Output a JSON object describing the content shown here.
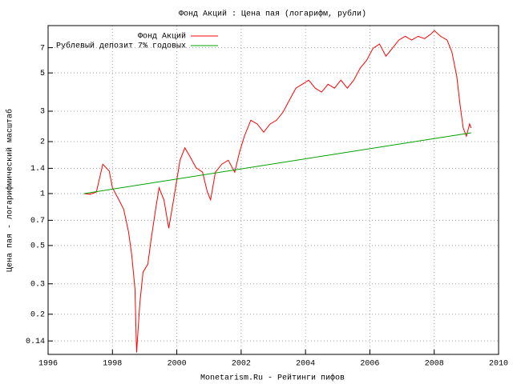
{
  "chart_data": {
    "type": "line",
    "title": "Фонд Акций : Цена пая (логарифм, рубли)",
    "x_label": "Monetarism.Ru - Рейтинги пифов",
    "y_label": "Цена пая - логарифмический масштаб",
    "log_y": true,
    "grid": true,
    "legend": "top-left",
    "xlim": [
      1996,
      2010
    ],
    "xticks": [
      1996,
      1998,
      2000,
      2002,
      2004,
      2006,
      2008,
      2010
    ],
    "ylim": [
      0.117,
      9.4
    ],
    "yticks": [
      0.14,
      0.2,
      0.3,
      0.5,
      0.7,
      1,
      1.4,
      2,
      3,
      5,
      7
    ],
    "series": [
      {
        "name": "Фонд Акций",
        "color": "#ff0000",
        "x": [
          1997.12,
          1997.3,
          1997.5,
          1997.7,
          1997.9,
          1998.0,
          1998.2,
          1998.35,
          1998.5,
          1998.6,
          1998.7,
          1998.75,
          1998.85,
          1998.95,
          1999.1,
          1999.2,
          1999.35,
          1999.45,
          1999.6,
          1999.75,
          1999.9,
          2000.0,
          2000.1,
          2000.25,
          2000.4,
          2000.6,
          2000.8,
          2000.95,
          2001.05,
          2001.2,
          2001.4,
          2001.6,
          2001.8,
          2001.95,
          2002.1,
          2002.3,
          2002.5,
          2002.7,
          2002.9,
          2003.1,
          2003.3,
          2003.5,
          2003.7,
          2003.9,
          2004.1,
          2004.3,
          2004.5,
          2004.7,
          2004.9,
          2005.1,
          2005.3,
          2005.5,
          2005.7,
          2005.9,
          2006.1,
          2006.3,
          2006.5,
          2006.7,
          2006.9,
          2007.1,
          2007.3,
          2007.5,
          2007.7,
          2007.9,
          2008.0,
          2008.2,
          2008.4,
          2008.55,
          2008.7,
          2008.8,
          2008.9,
          2009.0,
          2009.1,
          2009.15
        ],
        "values": [
          1.0,
          0.99,
          1.02,
          1.48,
          1.35,
          1.08,
          0.92,
          0.81,
          0.6,
          0.44,
          0.28,
          0.12,
          0.23,
          0.35,
          0.39,
          0.54,
          0.83,
          1.08,
          0.92,
          0.63,
          0.92,
          1.2,
          1.56,
          1.84,
          1.65,
          1.41,
          1.33,
          1.02,
          0.92,
          1.33,
          1.48,
          1.56,
          1.33,
          1.74,
          2.15,
          2.66,
          2.53,
          2.27,
          2.53,
          2.66,
          2.96,
          3.48,
          4.08,
          4.3,
          4.54,
          4.08,
          3.87,
          4.3,
          4.08,
          4.54,
          4.08,
          4.54,
          5.33,
          5.92,
          6.95,
          7.35,
          6.25,
          6.95,
          7.75,
          8.15,
          7.75,
          8.15,
          7.9,
          8.4,
          8.8,
          8.15,
          7.75,
          6.6,
          4.79,
          3.3,
          2.4,
          2.15,
          2.53,
          2.4
        ]
      },
      {
        "name": "Рублевый депозит 7% годовых",
        "color": "#00a000",
        "x": [
          1997.12,
          2009.15
        ],
        "values": [
          1.0,
          2.25
        ]
      }
    ]
  }
}
